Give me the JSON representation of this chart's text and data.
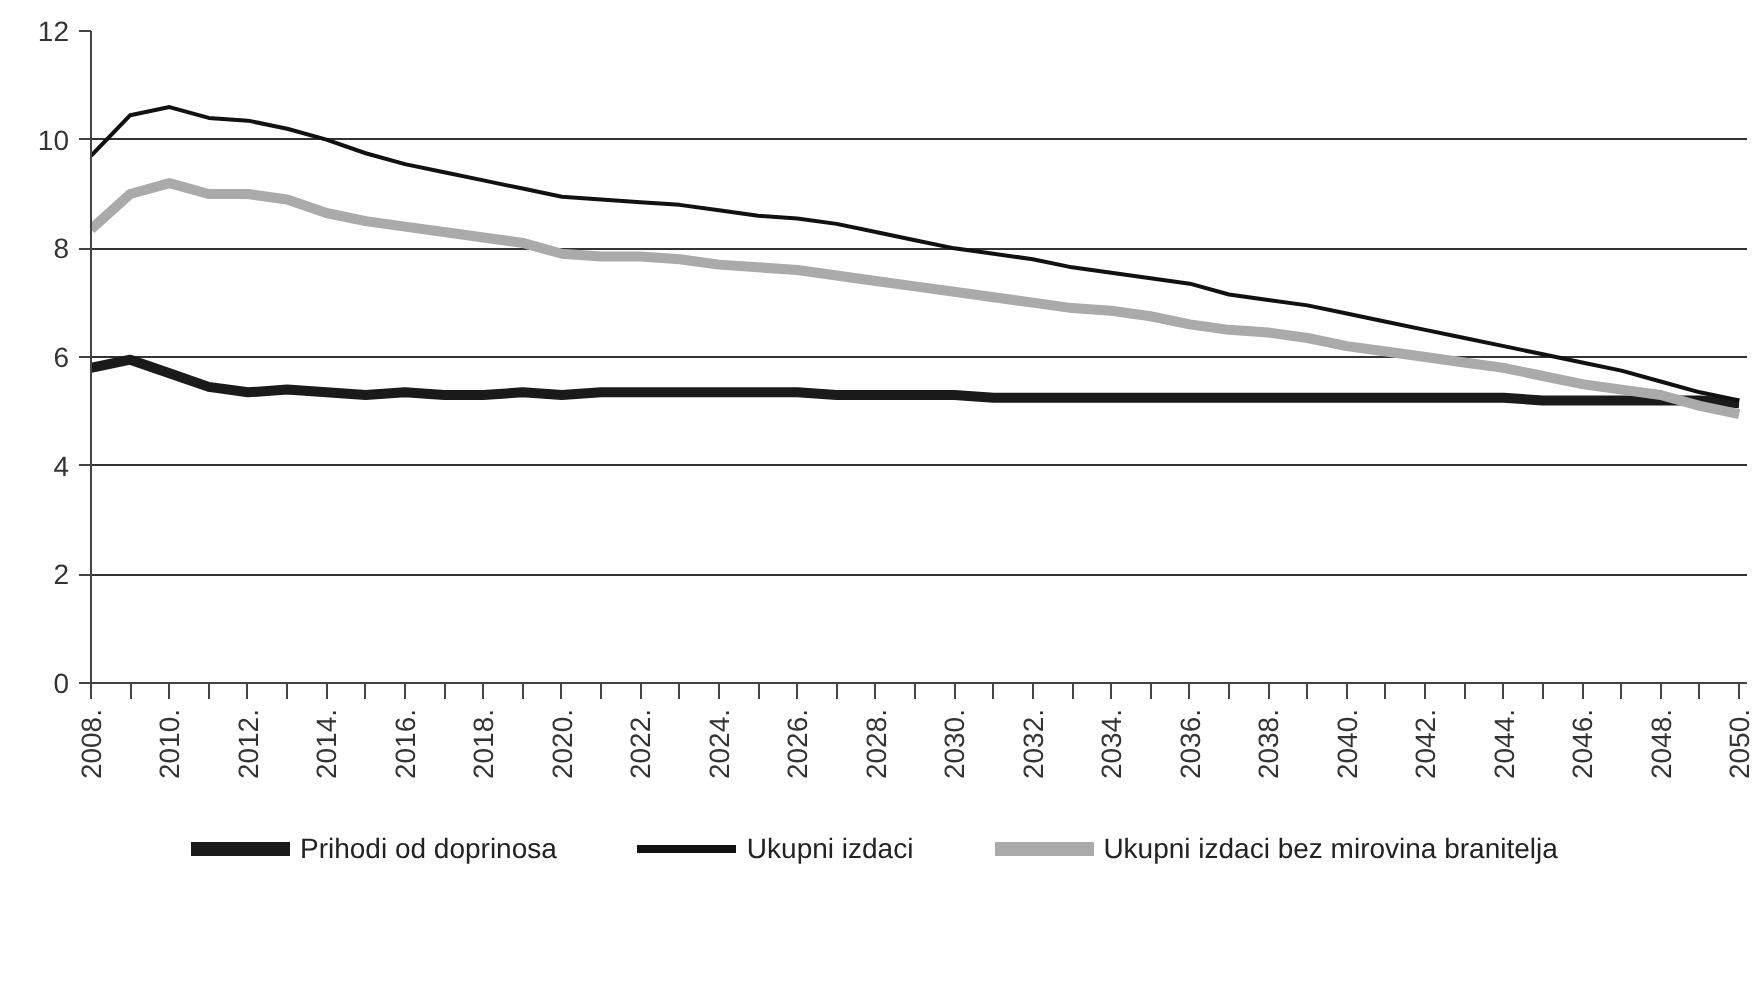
{
  "chart_data": {
    "type": "line",
    "x": [
      2008,
      2009,
      2010,
      2011,
      2012,
      2013,
      2014,
      2015,
      2016,
      2017,
      2018,
      2019,
      2020,
      2021,
      2022,
      2023,
      2024,
      2025,
      2026,
      2027,
      2028,
      2029,
      2030,
      2031,
      2032,
      2033,
      2034,
      2035,
      2036,
      2037,
      2038,
      2039,
      2040,
      2041,
      2042,
      2043,
      2044,
      2045,
      2046,
      2047,
      2048,
      2049,
      2050
    ],
    "series": [
      {
        "name": "Prihodi od doprinosa",
        "color": "#1a1a1a",
        "values": [
          5.8,
          5.95,
          5.7,
          5.45,
          5.35,
          5.4,
          5.35,
          5.3,
          5.35,
          5.3,
          5.3,
          5.35,
          5.3,
          5.35,
          5.35,
          5.35,
          5.35,
          5.35,
          5.35,
          5.3,
          5.3,
          5.3,
          5.3,
          5.25,
          5.25,
          5.25,
          5.25,
          5.25,
          5.25,
          5.25,
          5.25,
          5.25,
          5.25,
          5.25,
          5.25,
          5.25,
          5.25,
          5.2,
          5.2,
          5.2,
          5.2,
          5.2,
          5.15
        ]
      },
      {
        "name": "Ukupni izdaci",
        "color": "#111111",
        "values": [
          9.7,
          10.45,
          10.6,
          10.4,
          10.35,
          10.2,
          10.0,
          9.75,
          9.55,
          9.4,
          9.25,
          9.1,
          8.95,
          8.9,
          8.85,
          8.8,
          8.7,
          8.6,
          8.55,
          8.45,
          8.3,
          8.15,
          8.0,
          7.9,
          7.8,
          7.65,
          7.55,
          7.45,
          7.35,
          7.15,
          7.05,
          6.95,
          6.8,
          6.65,
          6.5,
          6.35,
          6.2,
          6.05,
          5.9,
          5.75,
          5.55,
          5.35,
          5.2
        ]
      },
      {
        "name": "Ukupni izdaci bez mirovina branitelja",
        "color": "#aaaaaa",
        "values": [
          8.35,
          9.0,
          9.2,
          9.0,
          9.0,
          8.9,
          8.65,
          8.5,
          8.4,
          8.3,
          8.2,
          8.1,
          7.9,
          7.85,
          7.85,
          7.8,
          7.7,
          7.65,
          7.6,
          7.5,
          7.4,
          7.3,
          7.2,
          7.1,
          7.0,
          6.9,
          6.85,
          6.75,
          6.6,
          6.5,
          6.45,
          6.35,
          6.2,
          6.1,
          6.0,
          5.9,
          5.8,
          5.65,
          5.5,
          5.4,
          5.3,
          5.1,
          4.95
        ]
      }
    ],
    "xlim": [
      2008,
      2050.2
    ],
    "xticks": [
      {
        "value": 2008,
        "label": "2008."
      },
      {
        "value": 2009,
        "label": null
      },
      {
        "value": 2010,
        "label": "2010."
      },
      {
        "value": 2011,
        "label": null
      },
      {
        "value": 2012,
        "label": "2012."
      },
      {
        "value": 2013,
        "label": null
      },
      {
        "value": 2014,
        "label": "2014."
      },
      {
        "value": 2015,
        "label": null
      },
      {
        "value": 2016,
        "label": "2016."
      },
      {
        "value": 2017,
        "label": null
      },
      {
        "value": 2018,
        "label": "2018."
      },
      {
        "value": 2019,
        "label": null
      },
      {
        "value": 2020,
        "label": "2020."
      },
      {
        "value": 2021,
        "label": null
      },
      {
        "value": 2022,
        "label": "2022."
      },
      {
        "value": 2023,
        "label": null
      },
      {
        "value": 2024,
        "label": "2024."
      },
      {
        "value": 2025,
        "label": null
      },
      {
        "value": 2026,
        "label": "2026."
      },
      {
        "value": 2027,
        "label": null
      },
      {
        "value": 2028,
        "label": "2028."
      },
      {
        "value": 2029,
        "label": null
      },
      {
        "value": 2030,
        "label": "2030."
      },
      {
        "value": 2031,
        "label": null
      },
      {
        "value": 2032,
        "label": "2032."
      },
      {
        "value": 2033,
        "label": null
      },
      {
        "value": 2034,
        "label": "2034."
      },
      {
        "value": 2035,
        "label": null
      },
      {
        "value": 2036,
        "label": "2036."
      },
      {
        "value": 2037,
        "label": null
      },
      {
        "value": 2038,
        "label": "2038."
      },
      {
        "value": 2039,
        "label": null
      },
      {
        "value": 2040,
        "label": "2040."
      },
      {
        "value": 2041,
        "label": null
      },
      {
        "value": 2042,
        "label": "2042."
      },
      {
        "value": 2043,
        "label": null
      },
      {
        "value": 2044,
        "label": "2044."
      },
      {
        "value": 2045,
        "label": null
      },
      {
        "value": 2046,
        "label": "2046."
      },
      {
        "value": 2047,
        "label": null
      },
      {
        "value": 2048,
        "label": "2048."
      },
      {
        "value": 2049,
        "label": null
      },
      {
        "value": 2050,
        "label": "2050."
      }
    ],
    "ylim": [
      0,
      12
    ],
    "yticks": [
      0,
      2,
      4,
      6,
      8,
      10,
      12
    ],
    "grid": "y",
    "legend": "bottom",
    "marker": "none",
    "line_style": "solid"
  }
}
